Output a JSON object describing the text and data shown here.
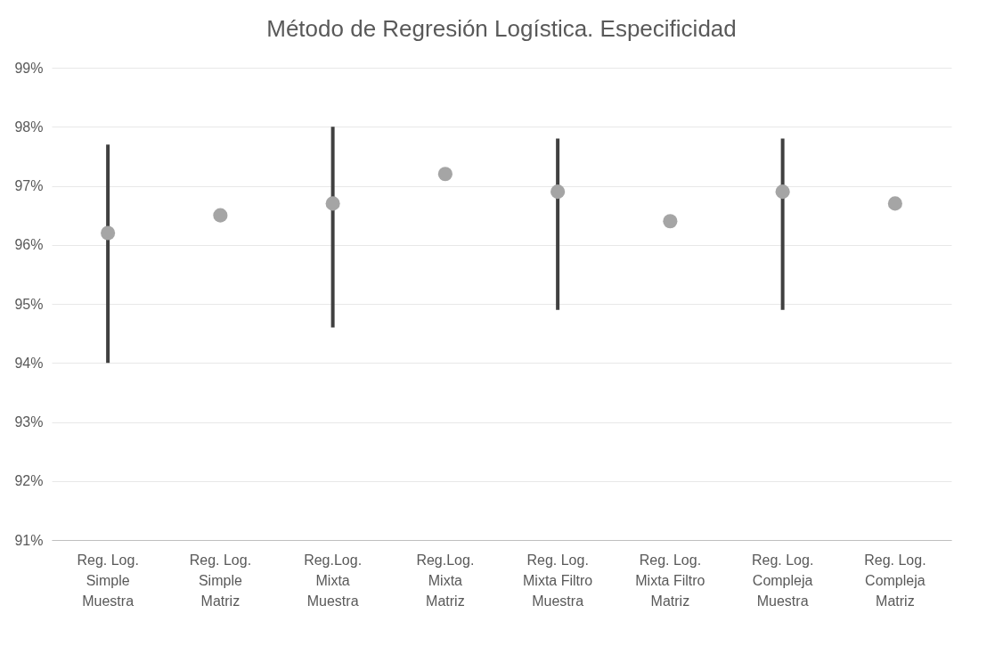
{
  "chart_data": {
    "type": "scatter",
    "title": "Método de Regresión Logística. Especificidad",
    "categories": [
      "Reg. Log.\nSimple\nMuestra",
      "Reg. Log.\nSimple\nMatriz",
      "Reg.Log.\nMixta\nMuestra",
      "Reg.Log.\nMixta\nMatriz",
      "Reg. Log.\nMixta Filtro\nMuestra",
      "Reg. Log.\nMixta Filtro\nMatriz",
      "Reg. Log.\nCompleja\nMuestra",
      "Reg. Log.\nCompleja\nMatriz"
    ],
    "values": [
      96.2,
      96.5,
      96.7,
      97.2,
      96.9,
      96.4,
      96.9,
      96.7
    ],
    "errors": [
      [
        94.0,
        97.7
      ],
      null,
      [
        94.6,
        98.0
      ],
      null,
      [
        94.9,
        97.8
      ],
      null,
      [
        94.9,
        97.8
      ],
      null
    ],
    "color": "#a5a5a5",
    "marker": "circle",
    "grid": "y",
    "ylim": [
      91,
      99
    ],
    "yticks": [
      {
        "value": 91,
        "label": "91%"
      },
      {
        "value": 92,
        "label": "92%"
      },
      {
        "value": 93,
        "label": "93%"
      },
      {
        "value": 94,
        "label": "94%"
      },
      {
        "value": 95,
        "label": "95%"
      },
      {
        "value": 96,
        "label": "96%"
      },
      {
        "value": 97,
        "label": "97%"
      },
      {
        "value": 98,
        "label": "98%"
      },
      {
        "value": 99,
        "label": "99%"
      }
    ]
  }
}
